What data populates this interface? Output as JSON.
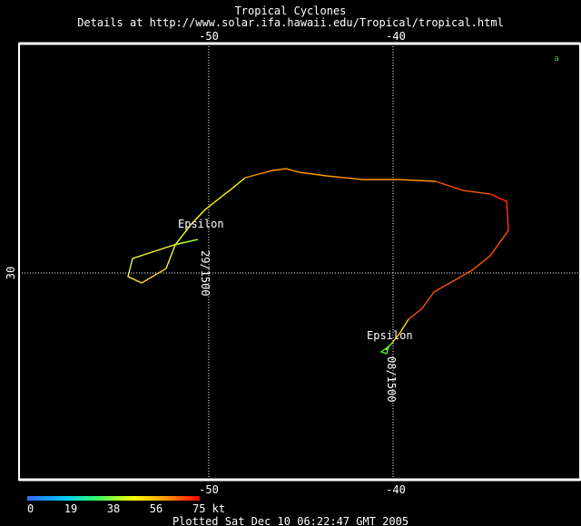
{
  "header": {
    "title": "Tropical Cyclones",
    "subtitle": "Details at http://www.solar.ifa.hawaii.edu/Tropical/tropical.html"
  },
  "axes": {
    "lon_top": [
      "-50",
      "-40"
    ],
    "lon_bottom": [
      "-50",
      "-40"
    ],
    "lat_left": [
      "30"
    ]
  },
  "storms": [
    {
      "name": "Epsilon",
      "date_label": "29/1500"
    },
    {
      "name": "Epsilon",
      "date_label": "08/1500"
    }
  ],
  "marker_text": "a",
  "colorbar": {
    "ticks": [
      "0",
      "19",
      "38",
      "56",
      "75 kt"
    ]
  },
  "footer": {
    "plotted": "Plotted Sat Dec 10 06:22:47 GMT 2005"
  },
  "colors": {
    "background": "#000000",
    "frame": "#ffffff",
    "grid": "#ffffff",
    "track_low": "#66ff00",
    "track_mid": "#ffff00",
    "track_high": "#ff0000"
  }
}
